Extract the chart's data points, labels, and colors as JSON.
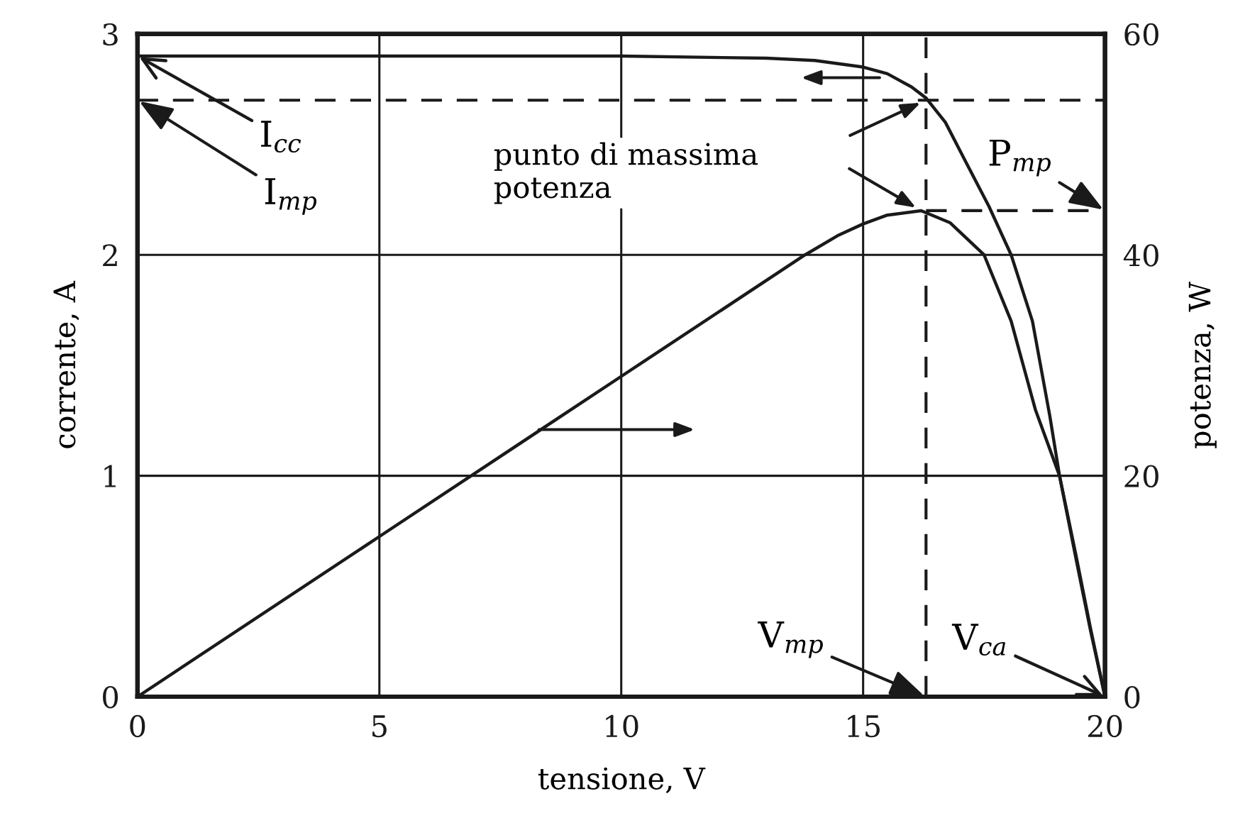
{
  "chart_data": {
    "type": "line",
    "xlabel": "tensione, V",
    "ylabel": "corrente, A",
    "y2label": "potenza, W",
    "xlim": [
      0,
      20
    ],
    "xticks": [
      0,
      5,
      10,
      15,
      20
    ],
    "ylim": [
      0,
      3
    ],
    "yticks": [
      0,
      1,
      2,
      3
    ],
    "y2lim": [
      0,
      60
    ],
    "y2ticks": [
      0,
      20,
      40,
      60
    ],
    "grid": true,
    "line_style": "solid",
    "series": [
      {
        "color": "#1a1a1a",
        "axis": "y",
        "x": [
          0,
          5,
          10,
          13,
          14,
          15,
          15.5,
          16,
          16.3,
          16.7,
          17.1,
          17.6,
          18.06,
          18.5,
          18.86,
          19.06,
          19.4,
          19.7,
          20
        ],
        "values": [
          2.9,
          2.9,
          2.9,
          2.89,
          2.88,
          2.85,
          2.82,
          2.76,
          2.71,
          2.6,
          2.43,
          2.22,
          2.0,
          1.7,
          1.27,
          1.0,
          0.64,
          0.31,
          0
        ]
      },
      {
        "color": "#1a1a1a",
        "axis": "y2",
        "x": [
          0,
          5,
          10,
          13.8,
          14.5,
          15,
          15.5,
          16.2,
          16.8,
          17.5,
          18.06,
          18.56,
          19.06,
          19.4,
          19.7,
          20
        ],
        "values": [
          0,
          14.5,
          29,
          40,
          41.8,
          42.8,
          43.6,
          44,
          42.9,
          40,
          34,
          26,
          20,
          12.5,
          6,
          0
        ]
      }
    ],
    "ref_lines": [
      {
        "axis": "y",
        "value": 2.7,
        "label": "I$_{mp}$",
        "line_style": "dashed",
        "color": "#1a1a1a"
      },
      {
        "axis": "x",
        "value": 16.3,
        "label": "V$_{mp}$",
        "line_style": "dashed",
        "color": "#1a1a1a"
      },
      {
        "axis": "y2",
        "value": 44,
        "label": "P$_{mp}$",
        "line_style": "dashed",
        "color": "#1a1a1a"
      }
    ],
    "annotations": [
      {
        "text": "I$_{cc}$",
        "x": 0,
        "y": 2.9
      },
      "punto di massima\npotenza",
      {
        "text": "V$_{ca}$",
        "x": 20,
        "y": 0
      }
    ]
  }
}
